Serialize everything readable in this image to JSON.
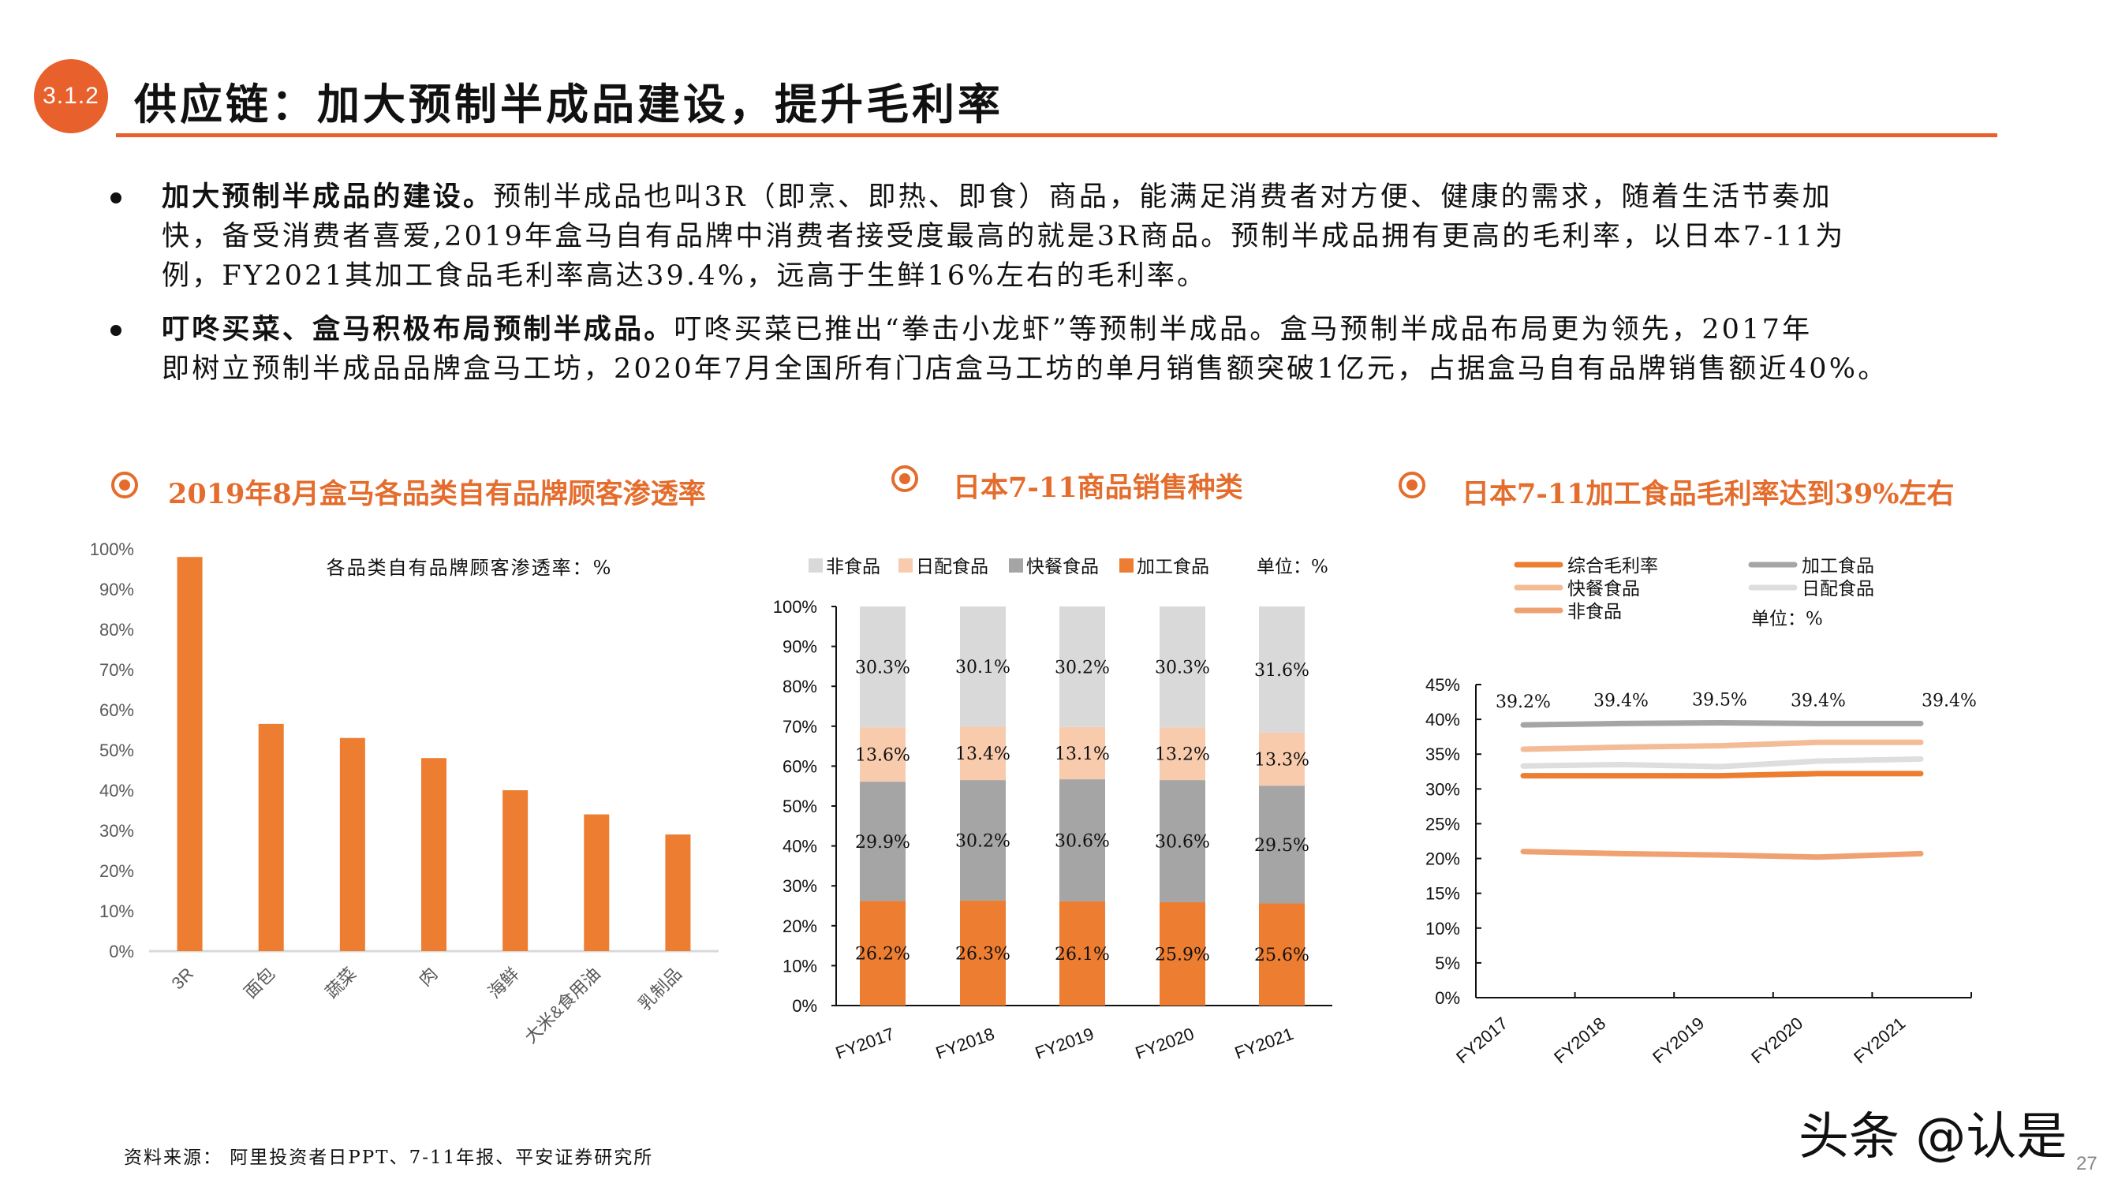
{
  "header": {
    "section_number": "3.1.2",
    "title": "供应链：加大预制半成品建设，提升毛利率"
  },
  "bullets": [
    {
      "bold": "加大预制半成品的建设。",
      "lines": [
        "预制半成品也叫3R（即烹、即热、即食）商品，能满足消费者对方便、健康的需求，随着生活节奏加",
        "快，备受消费者喜爱,2019年盒马自有品牌中消费者接受度最高的就是3R商品。预制半成品拥有更高的毛利率，以日本7-11为",
        "例，FY2021其加工食品毛利率高达39.4%，远高于生鲜16%左右的毛利率。"
      ]
    },
    {
      "bold": "叮咚买菜、盒马积极布局预制半成品。",
      "lines": [
        "叮咚买菜已推出“拳击小龙虾”等预制半成品。盒马预制半成品布局更为领先，2017年",
        "即树立预制半成品品牌盒马工坊，2020年7月全国所有门店盒马工坊的单月销售额突破1亿元，占据盒马自有品牌销售额近40%。"
      ]
    }
  ],
  "chart_titles": [
    "2019年8月盒马各品类自有品牌顾客渗透率",
    "日本7-11商品销售种类",
    "日本7-11加工食品毛利率达到39%左右"
  ],
  "chart_data": [
    {
      "type": "bar",
      "title": "各品类自有品牌顾客渗透率：%",
      "categories": [
        "3R",
        "面包",
        "蔬菜",
        "肉",
        "海鲜",
        "大米&食用油",
        "乳制品"
      ],
      "values": [
        98,
        56.5,
        53,
        48,
        40,
        34,
        29
      ],
      "ylim": [
        0,
        100
      ],
      "yticks": [
        "0%",
        "10%",
        "20%",
        "30%",
        "40%",
        "50%",
        "60%",
        "70%",
        "80%",
        "90%",
        "100%"
      ],
      "color": "#ed7d31",
      "grid": false
    },
    {
      "type": "bar",
      "stacked": true,
      "unit_label": "单位：%",
      "categories": [
        "FY2017",
        "FY2018",
        "FY2019",
        "FY2020",
        "FY2021"
      ],
      "series": [
        {
          "name": "加工食品",
          "values": [
            26.2,
            26.3,
            26.1,
            25.9,
            25.6
          ],
          "labels": [
            "26.2%",
            "26.3%",
            "26.1%",
            "25.9%",
            "25.6%"
          ],
          "color": "#ed7d31"
        },
        {
          "name": "快餐食品",
          "values": [
            29.9,
            30.2,
            30.6,
            30.6,
            29.5
          ],
          "labels": [
            "29.9%",
            "30.2%",
            "30.6%",
            "30.6%",
            "29.5%"
          ],
          "color": "#a5a5a5"
        },
        {
          "name": "日配食品",
          "values": [
            13.6,
            13.4,
            13.1,
            13.2,
            13.3
          ],
          "labels": [
            "13.6%",
            "13.4%",
            "13.1%",
            "13.2%",
            "13.3%"
          ],
          "color": "#f8cbad"
        },
        {
          "name": "非食品",
          "values": [
            30.3,
            30.1,
            30.2,
            30.3,
            31.6
          ],
          "labels": [
            "30.3%",
            "30.1%",
            "30.2%",
            "30.3%",
            "31.6%"
          ],
          "color": "#d9d9d9"
        }
      ],
      "legend_order": [
        "非食品",
        "日配食品",
        "快餐食品",
        "加工食品"
      ],
      "ylim": [
        0,
        100
      ],
      "yticks": [
        "0%",
        "10%",
        "20%",
        "30%",
        "40%",
        "50%",
        "60%",
        "70%",
        "80%",
        "90%",
        "100%"
      ],
      "legend": "top",
      "grid": false
    },
    {
      "type": "line",
      "unit_label": "单位：%",
      "categories": [
        "FY2017",
        "FY2018",
        "FY2019",
        "FY2020",
        "FY2021"
      ],
      "series": [
        {
          "name": "综合毛利率",
          "values": [
            31.9,
            31.9,
            31.9,
            32.2,
            32.2
          ],
          "color": "#ed7d31"
        },
        {
          "name": "加工食品",
          "values": [
            39.2,
            39.4,
            39.5,
            39.4,
            39.4
          ],
          "labels": [
            "39.2%",
            "39.4%",
            "39.5%",
            "39.4%",
            "39.4%"
          ],
          "color": "#a5a5a5"
        },
        {
          "name": "快餐食品",
          "values": [
            35.7,
            36.0,
            36.2,
            36.7,
            36.7
          ],
          "color": "#f4bc96"
        },
        {
          "name": "日配食品",
          "values": [
            33.3,
            33.5,
            33.2,
            34.0,
            34.3
          ],
          "color": "#dedede"
        },
        {
          "name": "非食品",
          "values": [
            21.0,
            20.7,
            20.5,
            20.2,
            20.7
          ],
          "color": "#f0a172"
        }
      ],
      "ylim": [
        0,
        45
      ],
      "yticks": [
        "0%",
        "5%",
        "10%",
        "15%",
        "20%",
        "25%",
        "30%",
        "35%",
        "40%",
        "45%"
      ],
      "legend": "top",
      "grid": false
    }
  ],
  "footer": {
    "source": "资料来源：  阿里投资者日PPT、7-11年报、平安证券研究所",
    "watermark": "头条 @认是",
    "page_number": "27"
  },
  "colors": {
    "accent": "#e8602c",
    "title_orange": "#e46c2c"
  }
}
